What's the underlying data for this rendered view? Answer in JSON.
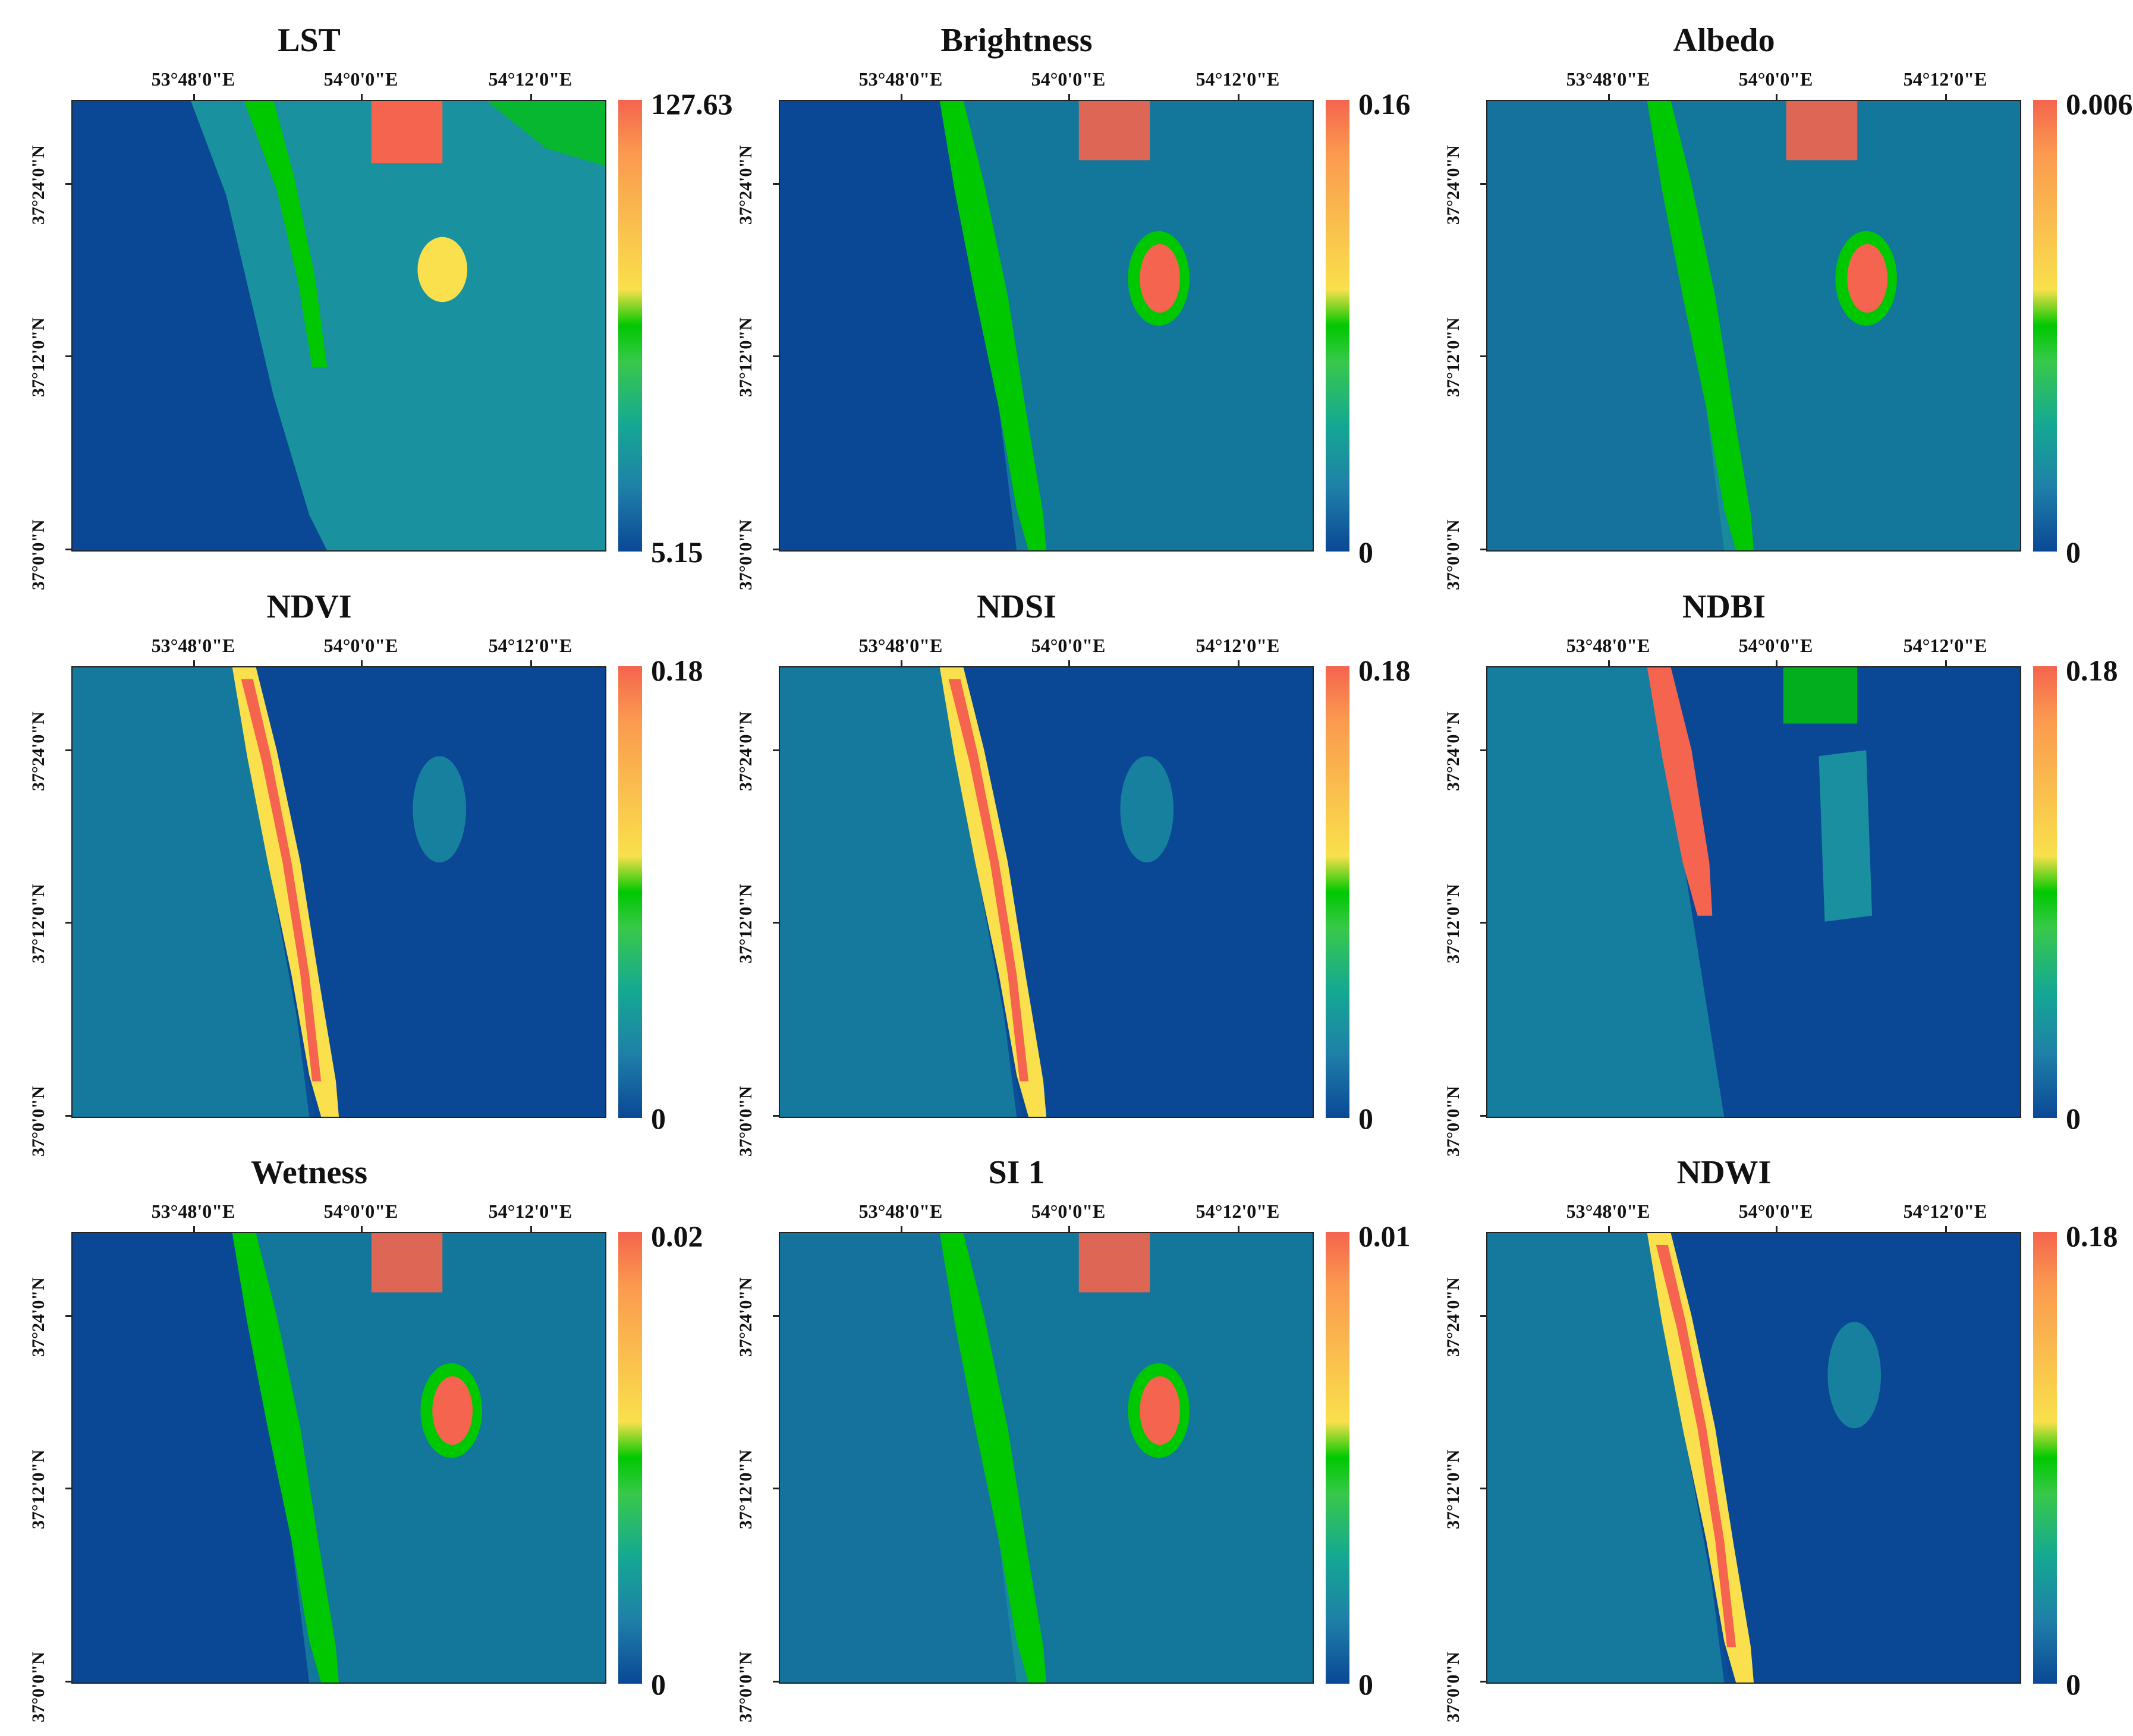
{
  "lon_labels": [
    "53°48'0\"E",
    "54°0'0\"E",
    "54°12'0\"E"
  ],
  "lat_labels": [
    "37°24'0\"N",
    "37°12'0\"N",
    "37°0'0\"N"
  ],
  "colors": {
    "water": "#0a4896",
    "sea_shallow": "#1a8fa0",
    "land": "#1c9fa0",
    "high": "#f4644e",
    "mid_high": "#f9e04c",
    "mid": "#00c800"
  },
  "panels": [
    {
      "title": "LST",
      "max": "127.63",
      "min": "5.15",
      "pattern": "lst"
    },
    {
      "title": "Brightness",
      "max": "0.16",
      "min": "0",
      "pattern": "bright"
    },
    {
      "title": "Albedo",
      "max": "0.006",
      "min": "0",
      "pattern": "albedo"
    },
    {
      "title": "NDVI",
      "max": "0.18",
      "min": "0",
      "pattern": "strip"
    },
    {
      "title": "NDSI",
      "max": "0.18",
      "min": "0",
      "pattern": "strip"
    },
    {
      "title": "NDBI",
      "max": "0.18",
      "min": "0",
      "pattern": "ndbi"
    },
    {
      "title": "Wetness",
      "max": "0.02",
      "min": "0",
      "pattern": "wet"
    },
    {
      "title": "SI 1",
      "max": "0.01",
      "min": "0",
      "pattern": "si"
    },
    {
      "title": "NDWI",
      "max": "0.18",
      "min": "0",
      "pattern": "strip"
    }
  ]
}
